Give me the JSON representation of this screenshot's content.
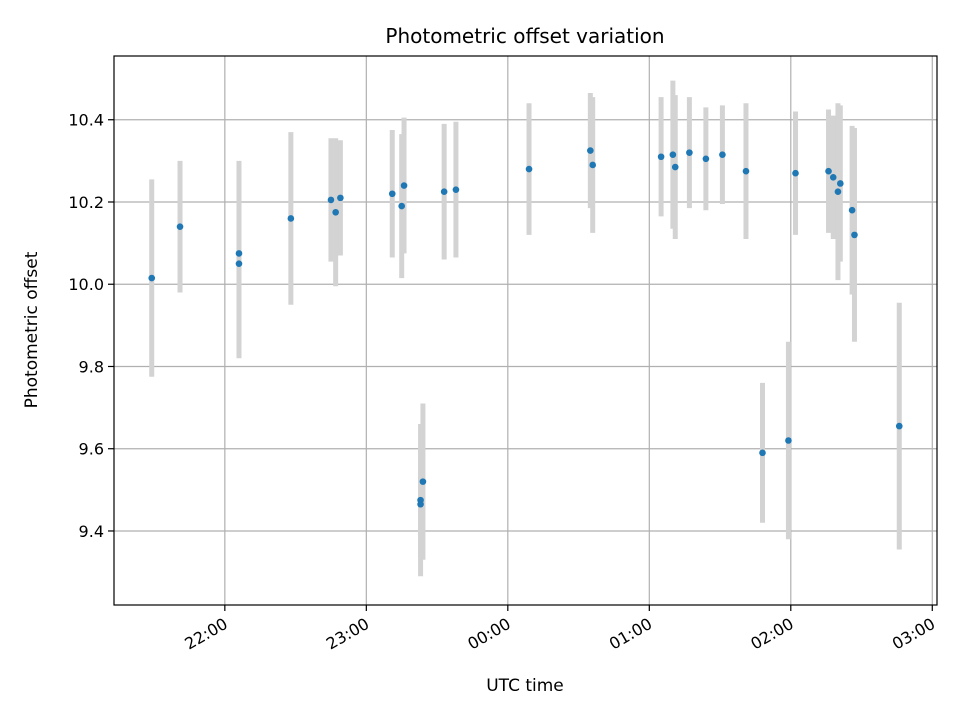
{
  "chart_data": {
    "type": "scatter",
    "title": "Photometric offset variation",
    "xlabel": "UTC time",
    "ylabel": "Photometric offset",
    "x_unit": "UTC",
    "xlim": [
      "21:13",
      "03:02"
    ],
    "ylim": [
      9.22,
      10.555
    ],
    "grid": true,
    "x_ticks": [
      "22:00",
      "23:00",
      "00:00",
      "01:00",
      "02:00",
      "03:00"
    ],
    "y_ticks": [
      9.4,
      9.6,
      9.8,
      10.0,
      10.2,
      10.4
    ],
    "y_tick_labels": [
      "9.4",
      "9.6",
      "9.8",
      "10.0",
      "10.2",
      "10.4"
    ],
    "point_color": "#1f77b4",
    "errorbar_color": "#d3d3d3",
    "points": [
      {
        "x": "21:29",
        "y": 10.015,
        "err": 0.24
      },
      {
        "x": "21:41",
        "y": 10.14,
        "err": 0.16
      },
      {
        "x": "22:06",
        "y": 10.075,
        "err": 0.225
      },
      {
        "x": "22:06",
        "y": 10.05,
        "err": 0.23
      },
      {
        "x": "22:28",
        "y": 10.16,
        "err": 0.21
      },
      {
        "x": "22:45",
        "y": 10.205,
        "err": 0.15
      },
      {
        "x": "22:47",
        "y": 10.175,
        "err": 0.18
      },
      {
        "x": "22:49",
        "y": 10.21,
        "err": 0.14
      },
      {
        "x": "23:11",
        "y": 10.22,
        "err": 0.155
      },
      {
        "x": "23:15",
        "y": 10.19,
        "err": 0.175
      },
      {
        "x": "23:16",
        "y": 10.24,
        "err": 0.165
      },
      {
        "x": "23:23",
        "y": 9.475,
        "err": 0.185
      },
      {
        "x": "23:23",
        "y": 9.465,
        "err": 0.13
      },
      {
        "x": "23:24",
        "y": 9.52,
        "err": 0.19
      },
      {
        "x": "23:33",
        "y": 10.225,
        "err": 0.165
      },
      {
        "x": "23:38",
        "y": 10.23,
        "err": 0.165
      },
      {
        "x": "00:09",
        "y": 10.28,
        "err": 0.16
      },
      {
        "x": "00:35",
        "y": 10.325,
        "err": 0.14
      },
      {
        "x": "00:36",
        "y": 10.29,
        "err": 0.165
      },
      {
        "x": "01:05",
        "y": 10.31,
        "err": 0.145
      },
      {
        "x": "01:10",
        "y": 10.315,
        "err": 0.18
      },
      {
        "x": "01:11",
        "y": 10.285,
        "err": 0.175
      },
      {
        "x": "01:17",
        "y": 10.32,
        "err": 0.135
      },
      {
        "x": "01:24",
        "y": 10.305,
        "err": 0.125
      },
      {
        "x": "01:31",
        "y": 10.315,
        "err": 0.12
      },
      {
        "x": "01:41",
        "y": 10.275,
        "err": 0.165
      },
      {
        "x": "01:48",
        "y": 9.59,
        "err": 0.17
      },
      {
        "x": "01:59",
        "y": 9.62,
        "err": 0.24
      },
      {
        "x": "02:02",
        "y": 10.27,
        "err": 0.15
      },
      {
        "x": "02:16",
        "y": 10.275,
        "err": 0.15
      },
      {
        "x": "02:18",
        "y": 10.26,
        "err": 0.15
      },
      {
        "x": "02:20",
        "y": 10.225,
        "err": 0.215
      },
      {
        "x": "02:21",
        "y": 10.245,
        "err": 0.19
      },
      {
        "x": "02:26",
        "y": 10.18,
        "err": 0.205
      },
      {
        "x": "02:27",
        "y": 10.12,
        "err": 0.26
      },
      {
        "x": "02:46",
        "y": 9.655,
        "err": 0.3
      }
    ]
  }
}
